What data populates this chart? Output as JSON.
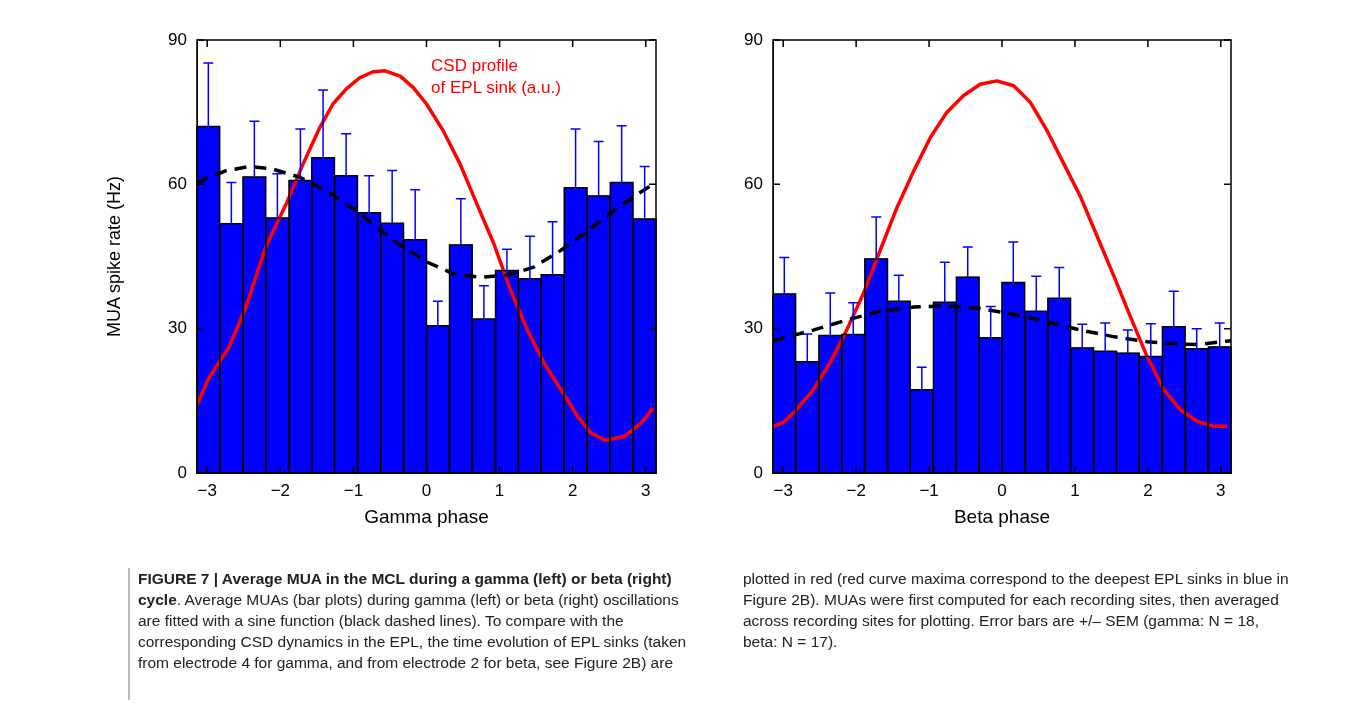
{
  "chart_data": [
    {
      "type": "histogram",
      "xlabel": "Gamma phase",
      "ylabel": "MUA spike rate (Hz)",
      "xlim": [
        -3.14,
        3.14
      ],
      "xticks": [
        -3,
        -2,
        -1,
        0,
        1,
        2,
        3
      ],
      "ylim": [
        0,
        90
      ],
      "yticks": [
        0,
        30,
        60,
        90
      ],
      "grid": false,
      "legend": false,
      "bins": [
        -3.14,
        -2.83,
        -2.51,
        -2.2,
        -1.88,
        -1.57,
        -1.26,
        -0.94,
        -0.63,
        -0.31,
        0,
        0.31,
        0.63,
        0.94,
        1.26,
        1.57,
        1.88,
        2.2,
        2.51,
        2.83,
        3.14
      ],
      "series": [
        {
          "color": "#0000ff",
          "values": [
            72.0,
            51.8,
            61.5,
            53.0,
            60.8,
            65.5,
            61.8,
            54.1,
            51.9,
            48.5,
            30.6,
            47.4,
            32.0,
            42.1,
            40.4,
            41.2,
            59.3,
            57.6,
            60.4,
            52.8
          ],
          "errors": [
            [
              72.0,
              85.2
            ],
            [
              51.8,
              60.4
            ],
            [
              61.5,
              73.1
            ],
            [
              53.0,
              62.2
            ],
            [
              60.8,
              71.5
            ],
            [
              65.5,
              79.6
            ],
            [
              61.8,
              70.5
            ],
            [
              54.1,
              61.8
            ],
            [
              51.9,
              62.9
            ],
            [
              48.5,
              58.9
            ],
            [
              30.6,
              35.7
            ],
            [
              47.4,
              57.0
            ],
            [
              32.0,
              38.9
            ],
            [
              42.1,
              46.5
            ],
            [
              40.4,
              49.2
            ],
            [
              41.2,
              52.2
            ],
            [
              59.3,
              71.5
            ],
            [
              57.6,
              68.9
            ],
            [
              60.4,
              72.2
            ],
            [
              52.8,
              63.7
            ]
          ]
        },
        {
          "type": "line",
          "line_style": "dashed",
          "color": "#000000",
          "x": [
            -3.14,
            -2.75,
            -2.43,
            -2.11,
            -1.74,
            -1.37,
            -0.91,
            -0.45,
            0,
            0.37,
            0.74,
            1.11,
            1.47,
            1.84,
            2.21,
            2.57,
            2.89,
            3.14
          ],
          "values": [
            60.4,
            62.8,
            63.7,
            63.2,
            61.5,
            58.7,
            53.9,
            48.3,
            43.9,
            41.4,
            40.7,
            41.1,
            42.8,
            46.3,
            50.4,
            54.6,
            58.0,
            60.4
          ]
        },
        {
          "type": "line",
          "line_style": "solid",
          "name": "CSD profile\nof EPL sink (a.u.)",
          "color": "#ff0000",
          "x": [
            -3.14,
            -2.98,
            -2.7,
            -2.47,
            -2.2,
            -1.92,
            -1.69,
            -1.46,
            -1.28,
            -1.1,
            -0.91,
            -0.73,
            -0.57,
            -0.36,
            -0.18,
            0,
            0.23,
            0.46,
            0.69,
            0.92,
            1.15,
            1.38,
            1.61,
            1.84,
            2.07,
            2.25,
            2.44,
            2.71,
            2.94,
            3.1
          ],
          "values": [
            14.2,
            19.7,
            26.2,
            34.5,
            47.0,
            55.9,
            64.2,
            71.8,
            76.7,
            79.8,
            82.2,
            83.4,
            83.6,
            82.5,
            80.1,
            76.7,
            71.1,
            64.2,
            55.9,
            47.7,
            38.0,
            29.7,
            22.8,
            17.3,
            11.7,
            8.3,
            6.8,
            7.6,
            10.4,
            13.5
          ]
        }
      ],
      "annotations": [
        "FIGURE 7 | Average MUA in the MCL during a gamma (left) or beta (right) cycle",
        ". Average MUAs (bar plots) during gamma (left) or beta (right) oscillations are fitted with a sine function (black dashed lines). To compare with the corresponding CSD dynamics in the EPL, the time evolution of EPL sinks (taken from electrode 4 for gamma, and from electrode 2 for beta, see Figure 2B) are plotted in red (red curve maxima correspond to the deepest EPL sinks in blue in Figure 2B). MUAs were first computed for each recording sites, then averaged across recording sites for plotting. Error bars are +/– SEM (gamma: N = 18, beta: N = 17)."
      ]
    },
    {
      "type": "histogram",
      "xlabel": "Beta phase",
      "xlim": [
        -3.14,
        3.14
      ],
      "xticks": [
        -3,
        -2,
        -1,
        0,
        1,
        2,
        3
      ],
      "ylim": [
        0,
        90
      ],
      "yticks": [
        0,
        30,
        60,
        90
      ],
      "grid": false,
      "legend": false,
      "bins": [
        -3.14,
        -2.83,
        -2.51,
        -2.2,
        -1.88,
        -1.57,
        -1.26,
        -0.94,
        -0.63,
        -0.31,
        0,
        0.31,
        0.63,
        0.94,
        1.26,
        1.57,
        1.88,
        2.2,
        2.51,
        2.83,
        3.14
      ],
      "series": [
        {
          "color": "#0000ff",
          "values": [
            37.2,
            23.1,
            28.6,
            28.8,
            44.5,
            35.7,
            17.3,
            35.5,
            40.7,
            28.1,
            39.6,
            33.6,
            36.3,
            26.0,
            25.3,
            24.9,
            24.2,
            30.4,
            25.8,
            26.2
          ],
          "errors": [
            [
              37.2,
              44.8
            ],
            [
              23.1,
              28.9
            ],
            [
              28.6,
              37.4
            ],
            [
              28.8,
              35.4
            ],
            [
              44.5,
              53.2
            ],
            [
              35.7,
              41.1
            ],
            [
              17.3,
              22.0
            ],
            [
              35.5,
              43.8
            ],
            [
              40.7,
              47.0
            ],
            [
              28.1,
              34.6
            ],
            [
              39.6,
              48.0
            ],
            [
              33.6,
              40.9
            ],
            [
              36.3,
              42.7
            ],
            [
              26.0,
              30.9
            ],
            [
              25.3,
              31.2
            ],
            [
              24.9,
              29.7
            ],
            [
              24.2,
              31.0
            ],
            [
              30.4,
              37.8
            ],
            [
              25.8,
              30.0
            ],
            [
              26.2,
              31.2
            ]
          ]
        },
        {
          "type": "line",
          "line_style": "dashed",
          "color": "#000000",
          "x": [
            -3.14,
            -2.59,
            -2.13,
            -1.67,
            -1.21,
            -0.76,
            -0.3,
            0.16,
            0.62,
            1.08,
            1.54,
            1.99,
            2.45,
            2.68,
            3.14
          ],
          "values": [
            27.5,
            29.7,
            31.8,
            33.6,
            34.5,
            34.7,
            34.2,
            33.0,
            31.4,
            29.7,
            28.3,
            27.3,
            26.8,
            26.7,
            27.5
          ]
        },
        {
          "type": "line",
          "line_style": "solid",
          "color": "#ff0000",
          "x": [
            -3.14,
            -3.0,
            -2.82,
            -2.59,
            -2.36,
            -2.13,
            -1.9,
            -1.67,
            -1.44,
            -1.21,
            -0.98,
            -0.76,
            -0.53,
            -0.3,
            -0.07,
            0.16,
            0.39,
            0.62,
            0.85,
            1.08,
            1.31,
            1.54,
            1.76,
            1.99,
            2.22,
            2.45,
            2.68,
            2.91,
            3.09
          ],
          "values": [
            9.7,
            10.5,
            13.1,
            17.3,
            22.8,
            29.7,
            37.3,
            46.3,
            55.2,
            62.8,
            69.8,
            74.9,
            78.4,
            80.8,
            81.5,
            80.5,
            77.0,
            71.1,
            64.2,
            57.3,
            49.0,
            40.7,
            32.5,
            24.2,
            17.3,
            13.1,
            10.7,
            9.7,
            9.7
          ]
        }
      ]
    }
  ]
}
